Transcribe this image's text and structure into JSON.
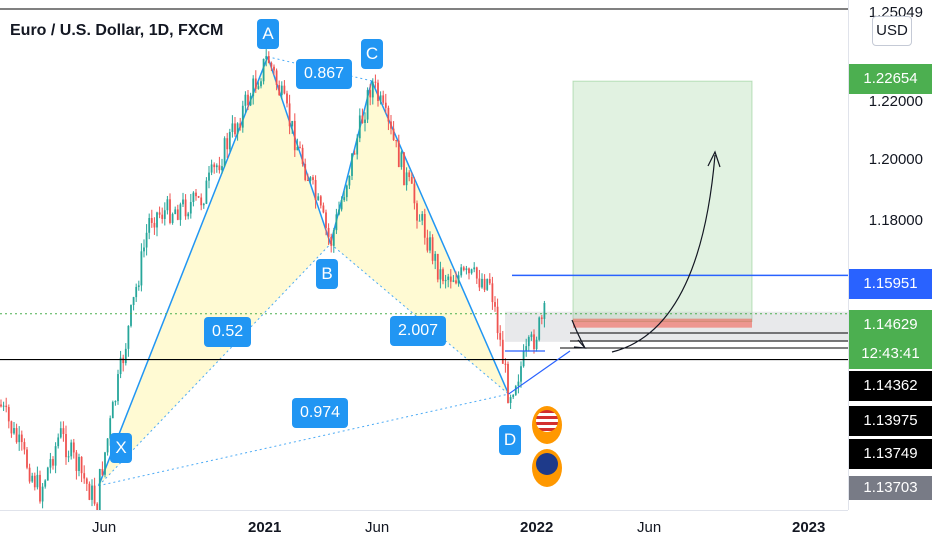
{
  "header": {
    "title": "Euro / U.S. Dollar, 1D, FXCM"
  },
  "price_axis": {
    "currency": "USD",
    "ticks": [
      "1.25049",
      "1.22000",
      "1.20000",
      "1.18000"
    ],
    "tags": [
      {
        "text": "1.22654",
        "color": "#4caf50"
      },
      {
        "text": "1.15951",
        "color": "#2962ff"
      },
      {
        "text": "1.14629",
        "color": "#4caf50"
      },
      {
        "text": "12:43:41",
        "color": "#4caf50"
      },
      {
        "text": "1.14362",
        "color": "#000000"
      },
      {
        "text": "1.13975",
        "color": "#000000"
      },
      {
        "text": "1.13749",
        "color": "#000000"
      },
      {
        "text": "1.13703",
        "color": "#787b86"
      }
    ]
  },
  "time_axis": {
    "labels": [
      "Jun",
      "2021",
      "Jun",
      "2022",
      "Jun",
      "2023"
    ]
  },
  "pattern": {
    "points": [
      "X",
      "A",
      "B",
      "C",
      "D"
    ],
    "ratios": [
      "0.867",
      "0.52",
      "2.007",
      "0.974"
    ]
  },
  "chart_data": {
    "type": "line",
    "title": "Euro / U.S. Dollar, 1D, FXCM",
    "y_unit": "USD",
    "x": [
      "2020-05-25",
      "2021-01-06",
      "2021-03-31",
      "2021-05-25",
      "2021-11-24"
    ],
    "series": [
      {
        "values": [
          1.087,
          1.2349,
          1.1704,
          1.2266,
          1.1186
        ]
      }
    ],
    "points": [
      {
        "label": "X",
        "date": "2020-05-25",
        "price": 1.087
      },
      {
        "label": "A",
        "date": "2021-01-06",
        "price": 1.2349
      },
      {
        "label": "B",
        "date": "2021-03-31",
        "price": 1.1704
      },
      {
        "label": "C",
        "date": "2021-05-25",
        "price": 1.2266
      },
      {
        "label": "D",
        "date": "2021-11-24",
        "price": 1.1186
      }
    ],
    "ratios": [
      {
        "legs": "XA-AC",
        "value": 0.867
      },
      {
        "legs": "XA-AB",
        "value": 0.52
      },
      {
        "legs": "BC-CD",
        "value": 2.007
      },
      {
        "legs": "XA-XD",
        "value": 0.974
      }
    ],
    "horizontal_levels": [
      1.25049,
      1.22654,
      1.15951,
      1.14629,
      1.14362,
      1.13975,
      1.13749,
      1.13703
    ],
    "target_zone": [
      1.1436,
      1.2265
    ],
    "yticks": [
      1.18,
      1.2,
      1.22
    ],
    "x_ticks": [
      "Jun",
      "2021",
      "Jun",
      "2022",
      "Jun",
      "2023"
    ],
    "grid": false
  }
}
